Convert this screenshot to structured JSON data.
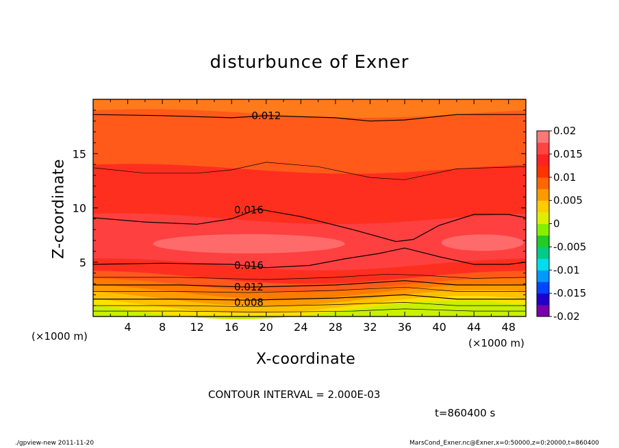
{
  "chart_data": {
    "type": "heatmap",
    "title": "disturbunce of Exner",
    "xlabel": "X-coordinate",
    "ylabel": "Z-coordinate",
    "x_unit_left": "(×1000 m)",
    "x_unit_right": "(×1000 m)",
    "xlim": [
      0,
      50
    ],
    "ylim": [
      0,
      20
    ],
    "x_ticks": [
      4,
      8,
      12,
      16,
      20,
      24,
      28,
      32,
      36,
      40,
      44,
      48
    ],
    "y_ticks": [
      5,
      10,
      15
    ],
    "colorbar": {
      "ticks": [
        "0.02",
        "0.015",
        "0.01",
        "0.005",
        "0",
        "-0.005",
        "-0.01",
        "-0.015",
        "-0.02"
      ],
      "range": [
        -0.02,
        0.02
      ],
      "colors": [
        "#7a00aa",
        "#2200cc",
        "#0044ff",
        "#0099ff",
        "#00ddee",
        "#00cc88",
        "#22cc22",
        "#88ee00",
        "#ddee00",
        "#ffcc00",
        "#ff9900",
        "#ff6600",
        "#ff3300",
        "#ff2222",
        "#ff4444",
        "#ff7777"
      ]
    },
    "contour_labels": [
      {
        "text": "0.012",
        "x": 20,
        "y": 18.5
      },
      {
        "text": "0.016",
        "x": 18,
        "y": 9.8
      },
      {
        "text": "0.016",
        "x": 18,
        "y": 4.7
      },
      {
        "text": "0.012",
        "x": 18,
        "y": 2.7
      },
      {
        "text": "0.008",
        "x": 18,
        "y": 1.3
      }
    ],
    "contour_interval_text": "CONTOUR INTERVAL = 2.000E-03",
    "time_text": "t=860400 s"
  },
  "footer": {
    "left": "./gpview-new   2011-11-20",
    "right": "MarsCond_Exner.nc@Exner,x=0:50000,z=0:20000,t=860400"
  }
}
